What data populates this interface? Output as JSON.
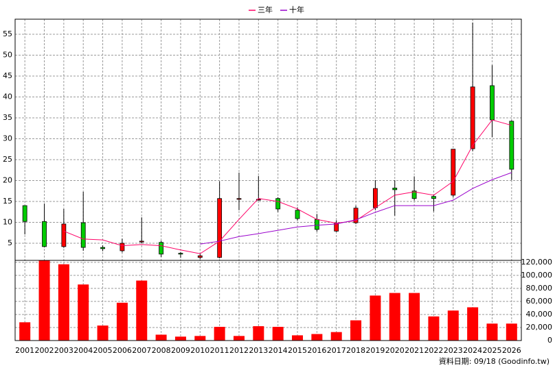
{
  "chart_data": {
    "type": "candlestick",
    "categories": [
      "2001",
      "2002",
      "2003",
      "2004",
      "2005",
      "2006",
      "2007",
      "2008",
      "2009",
      "2010",
      "2011",
      "2012",
      "2013",
      "2014",
      "2015",
      "2016",
      "2017",
      "2018",
      "2019",
      "2020",
      "2021",
      "2022",
      "2023",
      "2024",
      "2025",
      "2026"
    ],
    "open": [
      14.0,
      10.2,
      4.2,
      9.9,
      4.0,
      3.2,
      5.3,
      5.2,
      2.6,
      1.6,
      1.6,
      15.5,
      15.3,
      15.7,
      12.9,
      10.7,
      7.9,
      9.9,
      13.5,
      18.2,
      17.5,
      16.2,
      16.5,
      27.6,
      42.7,
      34.2
    ],
    "high": [
      14.0,
      14.5,
      13.2,
      17.3,
      4.5,
      6.1,
      11.2,
      5.6,
      2.9,
      2.5,
      19.8,
      21.9,
      21.1,
      16.0,
      13.6,
      12.0,
      10.5,
      14.0,
      20.1,
      20.1,
      21.0,
      16.6,
      27.5,
      57.8,
      47.6,
      34.4
    ],
    "low": [
      7.1,
      4.0,
      3.9,
      3.2,
      3.1,
      2.8,
      5.0,
      1.7,
      1.5,
      1.2,
      1.4,
      12.9,
      15.2,
      12.5,
      10.4,
      7.8,
      7.7,
      9.6,
      12.9,
      11.6,
      15.2,
      12.6,
      16.0,
      27.0,
      30.4,
      20.1
    ],
    "close": [
      10.2,
      4.2,
      9.6,
      4.0,
      3.7,
      5.0,
      5.5,
      2.4,
      2.4,
      2.0,
      15.7,
      15.7,
      15.5,
      13.2,
      10.9,
      8.3,
      9.8,
      13.4,
      18.1,
      17.8,
      15.7,
      15.7,
      27.5,
      42.4,
      34.5,
      22.7
    ],
    "up_color": "#ff0000",
    "down_color": "#00cc00",
    "series": [
      {
        "name": "三年",
        "color": "#ff0066",
        "values": [
          null,
          null,
          7.9,
          6.0,
          5.8,
          4.4,
          4.7,
          4.4,
          3.4,
          2.5,
          5.5,
          10.7,
          15.7,
          15.0,
          13.2,
          10.7,
          9.8,
          10.4,
          13.5,
          16.5,
          17.3,
          16.5,
          19.8,
          28.4,
          34.5,
          33.2
        ]
      },
      {
        "name": "十年",
        "color": "#9900cc",
        "values": [
          null,
          null,
          null,
          null,
          null,
          null,
          null,
          null,
          null,
          4.8,
          5.5,
          6.6,
          7.3,
          8.1,
          8.9,
          9.3,
          9.6,
          10.6,
          12.4,
          14.0,
          14.0,
          14.0,
          15.3,
          18.1,
          20.2,
          21.9
        ]
      }
    ],
    "ylim": [
      0.9,
      58.6
    ],
    "yticks": [
      5,
      10,
      15,
      20,
      25,
      30,
      35,
      40,
      45,
      50,
      55
    ],
    "grid": true,
    "volume": {
      "type": "bar",
      "color": "#ff0000",
      "values": [
        28000,
        123000,
        117000,
        86000,
        23000,
        58000,
        92000,
        9000,
        6000,
        7000,
        21000,
        7000,
        22000,
        21000,
        8000,
        10000,
        13000,
        31000,
        69000,
        73000,
        73000,
        37000,
        46000,
        51000,
        26000,
        26000
      ],
      "ylim": [
        0,
        123000
      ],
      "yticks": [
        0,
        {
          "value": 20000,
          "label": "20,000"
        },
        {
          "value": 40000,
          "label": "40,000"
        },
        {
          "value": 60000,
          "label": "60,000"
        },
        {
          "value": 80000,
          "label": "80,000"
        },
        {
          "value": 100000,
          "label": "100,000"
        },
        {
          "value": 120000,
          "label": "120,000"
        }
      ]
    },
    "note": "資料日期: 09/18 (Goodinfo.tw)"
  }
}
